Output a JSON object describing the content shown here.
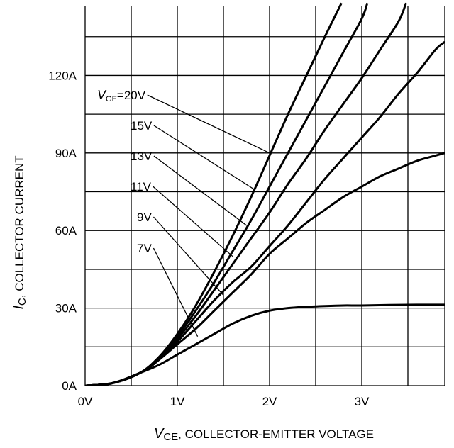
{
  "chart_data": {
    "type": "line",
    "xlabel_var": "V",
    "xlabel_sub": "CE",
    "xlabel_rest": ", COLLECTOR-EMITTER VOLTAGE",
    "ylabel_var": "I",
    "ylabel_sub": "C",
    "ylabel_rest": ", COLLECTOR CURRENT",
    "xlim": [
      0,
      3.9
    ],
    "ylim": [
      0,
      147
    ],
    "x_ticks": [
      {
        "value": 0,
        "label": "0V"
      },
      {
        "value": 1,
        "label": "1V"
      },
      {
        "value": 2,
        "label": "2V"
      },
      {
        "value": 3,
        "label": "3V"
      }
    ],
    "y_ticks": [
      {
        "value": 0,
        "label": "0A"
      },
      {
        "value": 30,
        "label": "30A"
      },
      {
        "value": 60,
        "label": "60A"
      },
      {
        "value": 90,
        "label": "90A"
      },
      {
        "value": 120,
        "label": "120A"
      }
    ],
    "grid": {
      "x_step": 0.5,
      "y_step": 15
    },
    "series": [
      {
        "name": "V_GE=20V",
        "label_var": "V",
        "label_sub": "GE",
        "label_rest": "=20V",
        "x": [
          0,
          0.3,
          0.6,
          0.8,
          1.0,
          1.2,
          1.4,
          1.6,
          1.8,
          2.0,
          2.2,
          2.4,
          2.6,
          2.78
        ],
        "y": [
          0,
          1,
          5,
          11,
          20,
          31,
          44,
          58,
          73,
          89,
          105,
          120,
          135,
          148
        ],
        "label_anchor": [
          2.0,
          90
        ]
      },
      {
        "name": "15V",
        "label_rest": "15V",
        "x": [
          0,
          0.3,
          0.6,
          0.8,
          1.0,
          1.2,
          1.4,
          1.6,
          1.8,
          2.0,
          2.2,
          2.4,
          2.6,
          2.8,
          3.0,
          3.06
        ],
        "y": [
          0,
          1,
          5,
          11,
          19,
          29,
          40,
          52,
          64,
          77,
          90,
          103,
          116,
          129,
          142,
          148
        ],
        "label_anchor": [
          1.83,
          76
        ]
      },
      {
        "name": "13V",
        "label_rest": "13V",
        "x": [
          0,
          0.3,
          0.6,
          0.8,
          1.0,
          1.2,
          1.4,
          1.6,
          1.8,
          2.0,
          2.2,
          2.4,
          2.6,
          2.8,
          3.0,
          3.2,
          3.4,
          3.48
        ],
        "y": [
          0,
          1,
          5,
          10,
          18,
          27,
          37,
          47,
          57,
          67,
          78,
          88,
          99,
          109,
          119,
          130,
          141,
          148
        ],
        "label_anchor": [
          1.75,
          62
        ]
      },
      {
        "name": "11V",
        "label_rest": "11V",
        "x": [
          0,
          0.3,
          0.6,
          0.8,
          1.0,
          1.2,
          1.4,
          1.6,
          1.8,
          2.0,
          2.2,
          2.4,
          2.6,
          2.8,
          3.0,
          3.2,
          3.4,
          3.6,
          3.8,
          3.9
        ],
        "y": [
          0,
          1,
          5,
          10,
          17,
          25,
          33,
          40,
          46,
          54,
          62,
          71,
          80,
          88,
          96,
          104,
          113,
          121,
          130,
          133
        ],
        "label_anchor": [
          1.6,
          50
        ]
      },
      {
        "name": "9V",
        "label_rest": "9V",
        "x": [
          0,
          0.3,
          0.6,
          0.8,
          1.0,
          1.2,
          1.4,
          1.6,
          1.8,
          2.0,
          2.2,
          2.4,
          2.6,
          2.8,
          3.0,
          3.2,
          3.4,
          3.6,
          3.8,
          3.9
        ],
        "y": [
          0,
          1,
          5,
          10,
          16,
          22,
          29,
          36,
          43,
          51,
          57,
          63,
          68,
          73,
          77,
          81,
          84,
          87,
          89,
          90
        ],
        "label_anchor": [
          1.5,
          35
        ]
      },
      {
        "name": "7V",
        "label_rest": "7V",
        "x": [
          0,
          0.3,
          0.6,
          0.8,
          1.0,
          1.2,
          1.4,
          1.6,
          1.8,
          2.0,
          2.2,
          2.4,
          2.6,
          2.8,
          3.0,
          3.3,
          3.6,
          3.9
        ],
        "y": [
          0,
          1,
          5,
          8,
          12,
          16,
          20,
          24,
          27,
          29,
          30,
          30.5,
          30.8,
          31,
          31,
          31.2,
          31.3,
          31.3
        ],
        "label_anchor": [
          1.22,
          19
        ]
      }
    ]
  }
}
